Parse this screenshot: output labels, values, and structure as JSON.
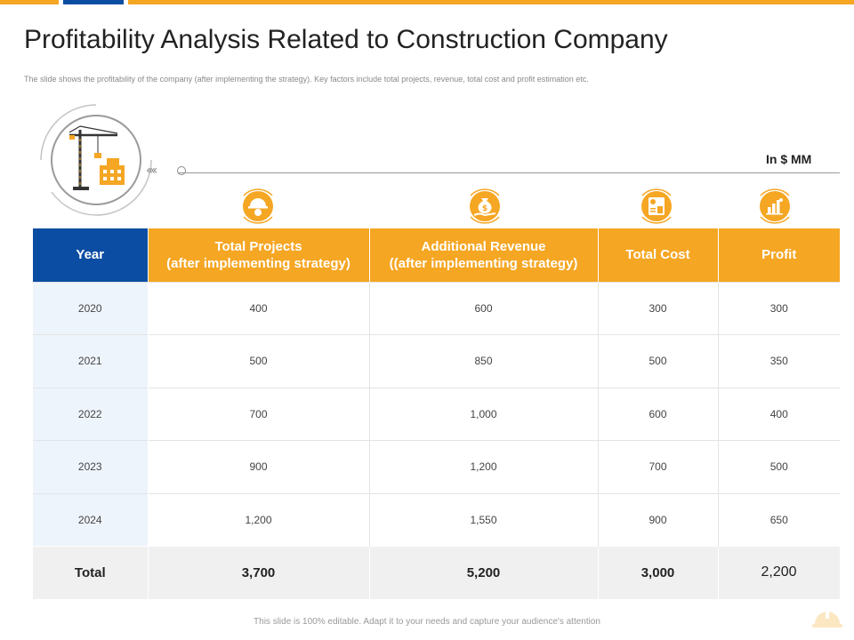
{
  "title": "Profitability Analysis Related to Construction Company",
  "subtitle": "The slide shows the profitability of the company (after implementing  the strategy). Key factors include total projects, revenue, total cost and profit estimation etc.",
  "unit": "In $ MM",
  "footer": "This slide is 100% editable.  Adapt it to your needs and capture your audience's attention",
  "colors": {
    "orange": "#F5A623",
    "blue": "#0B4DA2"
  },
  "icons": {
    "hero": "crane-building-icon",
    "projects": "worker-helmet-icon",
    "revenue": "money-bag-hand-icon",
    "cost": "calculator-document-icon",
    "profit": "bar-chart-growth-icon"
  },
  "table": {
    "headers": {
      "year": "Year",
      "projects_line1": "Total Projects",
      "projects_line2": "(after implementing strategy)",
      "revenue_line1": "Additional Revenue",
      "revenue_line2": "((after implementing strategy)",
      "cost": "Total Cost",
      "profit": "Profit"
    },
    "rows": [
      {
        "year": "2020",
        "projects": "400",
        "revenue": "600",
        "cost": "300",
        "profit": "300"
      },
      {
        "year": "2021",
        "projects": "500",
        "revenue": "850",
        "cost": "500",
        "profit": "350"
      },
      {
        "year": "2022",
        "projects": "700",
        "revenue": "1,000",
        "cost": "600",
        "profit": "400"
      },
      {
        "year": "2023",
        "projects": "900",
        "revenue": "1,200",
        "cost": "700",
        "profit": "500"
      },
      {
        "year": "2024",
        "projects": "1,200",
        "revenue": "1,550",
        "cost": "900",
        "profit": "650"
      }
    ],
    "total": {
      "label": "Total",
      "projects": "3,700",
      "revenue": "5,200",
      "cost": "3,000",
      "profit": "2,200"
    }
  }
}
